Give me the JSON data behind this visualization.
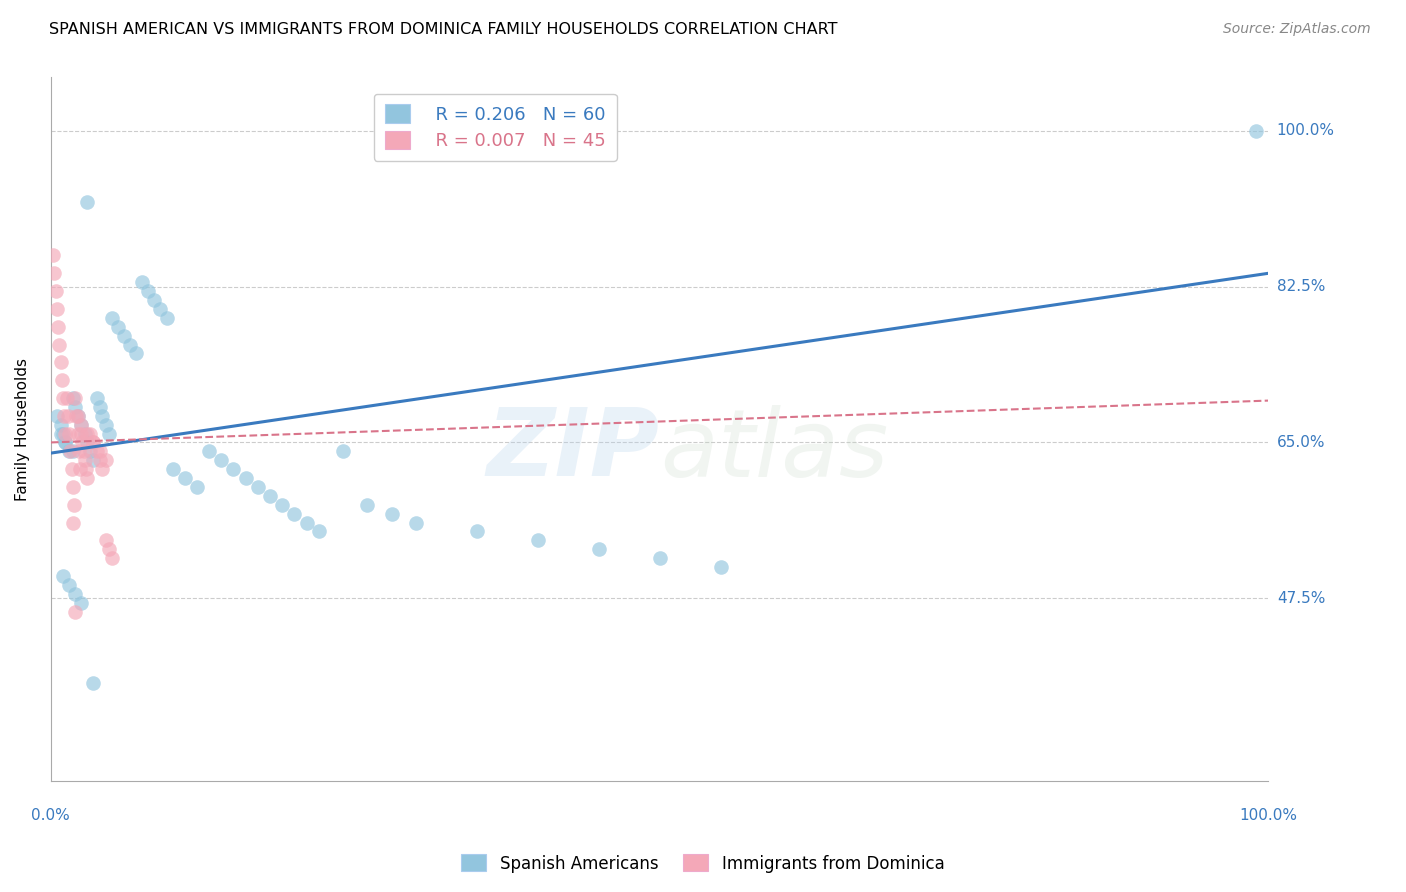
{
  "title": "SPANISH AMERICAN VS IMMIGRANTS FROM DOMINICA FAMILY HOUSEHOLDS CORRELATION CHART",
  "source": "Source: ZipAtlas.com",
  "ylabel": "Family Households",
  "ytick_labels": [
    "100.0%",
    "82.5%",
    "65.0%",
    "47.5%"
  ],
  "ytick_values": [
    1.0,
    0.825,
    0.65,
    0.475
  ],
  "xlim": [
    0.0,
    1.0
  ],
  "ylim": [
    0.27,
    1.06
  ],
  "legend_blue_r": "R = 0.206",
  "legend_blue_n": "N = 60",
  "legend_pink_r": "R = 0.007",
  "legend_pink_n": "N = 45",
  "blue_color": "#92c5de",
  "pink_color": "#f4a8b8",
  "line_blue": "#3a7abf",
  "line_pink": "#d9748a",
  "watermark_zip": "ZIP",
  "watermark_atlas": "atlas",
  "blue_scatter_x": [
    0.005,
    0.008,
    0.01,
    0.012,
    0.015,
    0.018,
    0.02,
    0.022,
    0.025,
    0.028,
    0.03,
    0.032,
    0.035,
    0.038,
    0.04,
    0.042,
    0.045,
    0.048,
    0.05,
    0.055,
    0.06,
    0.065,
    0.07,
    0.075,
    0.08,
    0.085,
    0.09,
    0.095,
    0.1,
    0.11,
    0.12,
    0.13,
    0.14,
    0.15,
    0.16,
    0.17,
    0.18,
    0.19,
    0.2,
    0.21,
    0.22,
    0.24,
    0.26,
    0.28,
    0.3,
    0.35,
    0.4,
    0.45,
    0.5,
    0.55,
    0.01,
    0.015,
    0.02,
    0.025,
    0.03,
    0.035,
    0.008,
    0.012,
    0.018,
    0.99
  ],
  "blue_scatter_y": [
    0.68,
    0.67,
    0.66,
    0.65,
    0.64,
    0.7,
    0.69,
    0.68,
    0.67,
    0.66,
    0.65,
    0.64,
    0.63,
    0.7,
    0.69,
    0.68,
    0.67,
    0.66,
    0.79,
    0.78,
    0.77,
    0.76,
    0.75,
    0.83,
    0.82,
    0.81,
    0.8,
    0.79,
    0.62,
    0.61,
    0.6,
    0.64,
    0.63,
    0.62,
    0.61,
    0.6,
    0.59,
    0.58,
    0.57,
    0.56,
    0.55,
    0.64,
    0.58,
    0.57,
    0.56,
    0.55,
    0.54,
    0.53,
    0.52,
    0.51,
    0.5,
    0.49,
    0.48,
    0.47,
    0.92,
    0.38,
    0.66,
    0.65,
    0.64,
    1.0
  ],
  "pink_scatter_x": [
    0.002,
    0.003,
    0.004,
    0.005,
    0.006,
    0.007,
    0.008,
    0.009,
    0.01,
    0.011,
    0.012,
    0.013,
    0.014,
    0.015,
    0.016,
    0.017,
    0.018,
    0.019,
    0.02,
    0.021,
    0.022,
    0.023,
    0.024,
    0.025,
    0.026,
    0.027,
    0.028,
    0.029,
    0.03,
    0.032,
    0.035,
    0.038,
    0.04,
    0.042,
    0.045,
    0.048,
    0.05,
    0.022,
    0.025,
    0.03,
    0.035,
    0.04,
    0.045,
    0.018,
    0.02
  ],
  "pink_scatter_y": [
    0.86,
    0.84,
    0.82,
    0.8,
    0.78,
    0.76,
    0.74,
    0.72,
    0.7,
    0.68,
    0.66,
    0.7,
    0.68,
    0.66,
    0.64,
    0.62,
    0.6,
    0.58,
    0.7,
    0.68,
    0.66,
    0.64,
    0.62,
    0.66,
    0.65,
    0.64,
    0.63,
    0.62,
    0.61,
    0.66,
    0.65,
    0.64,
    0.63,
    0.62,
    0.54,
    0.53,
    0.52,
    0.68,
    0.67,
    0.66,
    0.65,
    0.64,
    0.63,
    0.56,
    0.46
  ],
  "blue_line_x": [
    0.0,
    1.0
  ],
  "blue_line_y": [
    0.638,
    0.84
  ],
  "pink_line_x": [
    0.0,
    1.0
  ],
  "pink_line_y": [
    0.65,
    0.697
  ],
  "grid_color": "#cccccc",
  "bg_color": "#ffffff",
  "title_fontsize": 11.5,
  "label_fontsize": 11,
  "tick_fontsize": 11,
  "source_fontsize": 10
}
